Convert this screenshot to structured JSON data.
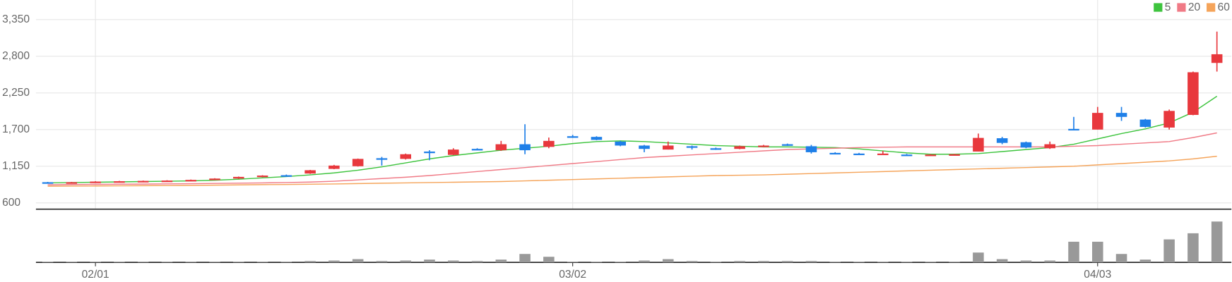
{
  "chart_data": {
    "type": "candlestick",
    "categories": [
      null,
      null,
      "02/01",
      null,
      null,
      null,
      null,
      null,
      null,
      null,
      null,
      null,
      null,
      null,
      null,
      null,
      null,
      null,
      null,
      null,
      null,
      null,
      "03/02",
      null,
      null,
      null,
      null,
      null,
      null,
      null,
      null,
      null,
      null,
      null,
      null,
      null,
      null,
      null,
      null,
      null,
      null,
      null,
      null,
      null,
      "04/03",
      null,
      null,
      null,
      null,
      null
    ],
    "open": [
      910,
      905,
      910,
      920,
      925,
      930,
      935,
      950,
      965,
      990,
      1015,
      1040,
      1110,
      1150,
      1270,
      1260,
      1370,
      1320,
      1410,
      1390,
      1480,
      1440,
      1600,
      1590,
      1520,
      1460,
      1400,
      1450,
      1420,
      1410,
      1440,
      1480,
      1450,
      1350,
      1340,
      1325,
      1325,
      1310,
      1320,
      1370,
      1570,
      1510,
      1420,
      1710,
      1700,
      1950,
      1850,
      1730,
      1920,
      2700
    ],
    "high": [
      915,
      915,
      925,
      930,
      935,
      940,
      950,
      970,
      995,
      1015,
      1025,
      1095,
      1170,
      1265,
      1290,
      1340,
      1390,
      1420,
      1420,
      1530,
      1780,
      1580,
      1620,
      1600,
      1530,
      1470,
      1520,
      1460,
      1430,
      1460,
      1470,
      1490,
      1470,
      1360,
      1350,
      1380,
      1335,
      1330,
      1335,
      1640,
      1590,
      1520,
      1520,
      1890,
      2040,
      2040,
      1860,
      2000,
      2570,
      3170
    ],
    "low": [
      900,
      900,
      905,
      915,
      920,
      925,
      930,
      945,
      960,
      985,
      1005,
      1035,
      1105,
      1145,
      1160,
      1250,
      1240,
      1315,
      1390,
      1380,
      1330,
      1420,
      1575,
      1540,
      1450,
      1360,
      1400,
      1400,
      1395,
      1405,
      1435,
      1455,
      1340,
      1335,
      1320,
      1320,
      1310,
      1305,
      1315,
      1370,
      1480,
      1420,
      1410,
      1690,
      1700,
      1830,
      1730,
      1700,
      1915,
      2570
    ],
    "close": [
      905,
      910,
      920,
      925,
      930,
      935,
      945,
      965,
      990,
      1010,
      1010,
      1090,
      1160,
      1260,
      1260,
      1330,
      1350,
      1400,
      1400,
      1480,
      1390,
      1530,
      1580,
      1545,
      1460,
      1410,
      1460,
      1430,
      1410,
      1450,
      1460,
      1460,
      1360,
      1340,
      1325,
      1340,
      1315,
      1325,
      1330,
      1575,
      1500,
      1430,
      1480,
      1700,
      1950,
      1890,
      1740,
      1980,
      2560,
      2830
    ],
    "up_color": "#e8383d",
    "down_color": "#1e7fe8",
    "series": [
      {
        "name": "5",
        "color": "#3ec43e",
        "values": [
          900,
          905,
          910,
          915,
          920,
          925,
          930,
          940,
          955,
          975,
          995,
          1020,
          1050,
          1090,
          1140,
          1200,
          1260,
          1310,
          1350,
          1390,
          1420,
          1450,
          1490,
          1520,
          1530,
          1520,
          1500,
          1480,
          1460,
          1450,
          1440,
          1440,
          1435,
          1430,
          1410,
          1380,
          1350,
          1330,
          1330,
          1340,
          1370,
          1400,
          1430,
          1480,
          1560,
          1640,
          1710,
          1800,
          1960,
          2200
        ]
      },
      {
        "name": "20",
        "color": "#f07a86",
        "values": [
          870,
          875,
          878,
          880,
          882,
          885,
          888,
          892,
          896,
          900,
          905,
          912,
          925,
          945,
          965,
          985,
          1010,
          1040,
          1070,
          1100,
          1130,
          1160,
          1190,
          1220,
          1250,
          1280,
          1300,
          1320,
          1340,
          1360,
          1380,
          1400,
          1410,
          1420,
          1430,
          1435,
          1440,
          1440,
          1440,
          1440,
          1440,
          1440,
          1440,
          1450,
          1460,
          1480,
          1500,
          1520,
          1580,
          1650
        ]
      },
      {
        "name": "60",
        "color": "#f5a45a",
        "values": [
          850,
          852,
          854,
          856,
          858,
          860,
          862,
          866,
          870,
          874,
          876,
          880,
          884,
          890,
          895,
          900,
          905,
          910,
          915,
          920,
          930,
          940,
          950,
          960,
          970,
          980,
          990,
          1000,
          1010,
          1015,
          1020,
          1030,
          1040,
          1050,
          1060,
          1070,
          1080,
          1090,
          1100,
          1110,
          1120,
          1130,
          1140,
          1150,
          1170,
          1190,
          1210,
          1230,
          1260,
          1300
        ]
      }
    ],
    "legend_position": "top-right",
    "ylim": [
      600,
      3350
    ],
    "yticks": [
      600,
      {
        "value": 1150,
        "label": "1,150"
      },
      {
        "value": 1700,
        "label": "1,700"
      },
      {
        "value": 2250,
        "label": "2,250"
      },
      {
        "value": 2800,
        "label": "2,800"
      },
      {
        "value": 3350,
        "label": "3,350"
      }
    ],
    "grid": true,
    "volume": {
      "color": "#999999",
      "ylim": [
        0,
        100
      ],
      "values": [
        1,
        1,
        1,
        1,
        1,
        1,
        1,
        1,
        1,
        1,
        1,
        3,
        4,
        7,
        3,
        4,
        6,
        4,
        3,
        6,
        18,
        12,
        1,
        1,
        1,
        4,
        7,
        3,
        1,
        3,
        3,
        3,
        3,
        1,
        1,
        1,
        1,
        1,
        1,
        21,
        7,
        4,
        4,
        44,
        44,
        18,
        6,
        49,
        62,
        87
      ]
    }
  }
}
